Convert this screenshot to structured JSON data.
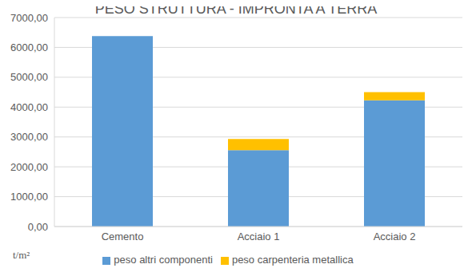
{
  "chart_data": {
    "type": "bar",
    "title": "PESO STRUTTURA - IMPRONTA A TERRA",
    "ylabel": "t/m²",
    "categories": [
      "Cemento",
      "Acciaio 1",
      "Acciaio 2"
    ],
    "series": [
      {
        "name": "peso altri componenti",
        "color": "#5b9bd5",
        "values": [
          6380,
          2560,
          4230
        ]
      },
      {
        "name": "peso carpenteria metallica",
        "color": "#ffc000",
        "values": [
          0,
          370,
          270
        ]
      }
    ],
    "stacked": true,
    "grid": true,
    "legend": "bottom",
    "ylim": [
      0,
      7000
    ],
    "yticks": [
      {
        "value": 0,
        "label": "0,00"
      },
      {
        "value": 1000,
        "label": "1000,00"
      },
      {
        "value": 2000,
        "label": "2000,00"
      },
      {
        "value": 3000,
        "label": "3000,00"
      },
      {
        "value": 4000,
        "label": "4000,00"
      },
      {
        "value": 5000,
        "label": "5000,00"
      },
      {
        "value": 6000,
        "label": "6000,00"
      },
      {
        "value": 7000,
        "label": "7000,00"
      }
    ]
  }
}
